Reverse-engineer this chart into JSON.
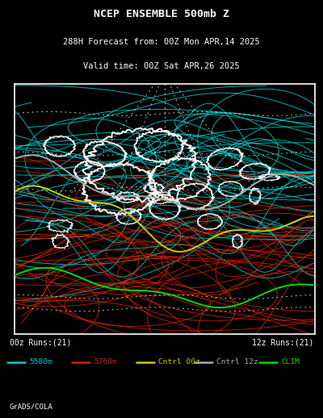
{
  "title_line1": "NCEP ENSEMBLE 500mb Z",
  "title_line2": "288H Forecast from: 00Z Mon APR,14 2025",
  "title_line3": "Valid time: 00Z Sat APR,26 2025",
  "background_color": "#000000",
  "map_bg_color": "#000000",
  "border_color": "#ffffff",
  "text_color": "#ffffff",
  "cyan_color": "#00cccc",
  "red_color": "#cc2200",
  "yellow_color": "#cccc00",
  "gray_color": "#aaaaaa",
  "green_color": "#00dd00",
  "white_color": "#ffffff",
  "footer_left": "00z Runs:(21)",
  "footer_right": "12z Runs:(21)",
  "legend_items": [
    "5580m",
    "5760m",
    "Cntrl 00z",
    "Cntrl 12z",
    "CLIM"
  ],
  "legend_colors": [
    "#00cccc",
    "#cc2200",
    "#cccc00",
    "#aaaaaa",
    "#00dd00"
  ],
  "grads_label": "GrADS/COLA",
  "num_cyan_lines": 42,
  "num_red_lines": 35,
  "seed": 42
}
